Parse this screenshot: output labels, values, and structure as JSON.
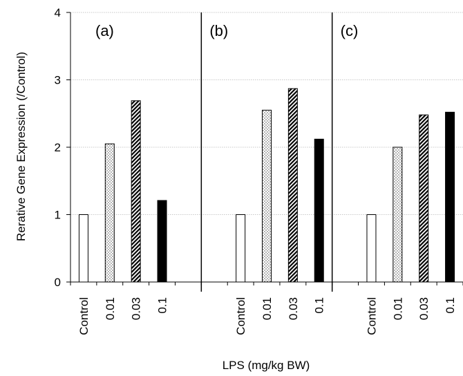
{
  "chart_data": {
    "type": "bar",
    "ylabel": "Rerative Gene Expression (/Control)",
    "xlabel": "LPS (mg/kg BW)",
    "ylim": [
      0,
      4
    ],
    "yticks": [
      "0",
      "1",
      "2",
      "3",
      "4"
    ],
    "grid": true,
    "categories": [
      "Control",
      "0.01",
      "0.03",
      "0.1"
    ],
    "fills": [
      "white",
      "dots",
      "hatch",
      "black"
    ],
    "panels": [
      {
        "label": "(a)",
        "values": [
          1.0,
          2.05,
          2.69,
          1.21
        ]
      },
      {
        "label": "(b)",
        "values": [
          1.0,
          2.55,
          2.87,
          2.12
        ]
      },
      {
        "label": "(c)",
        "values": [
          1.0,
          2.0,
          2.48,
          2.52
        ]
      }
    ]
  }
}
